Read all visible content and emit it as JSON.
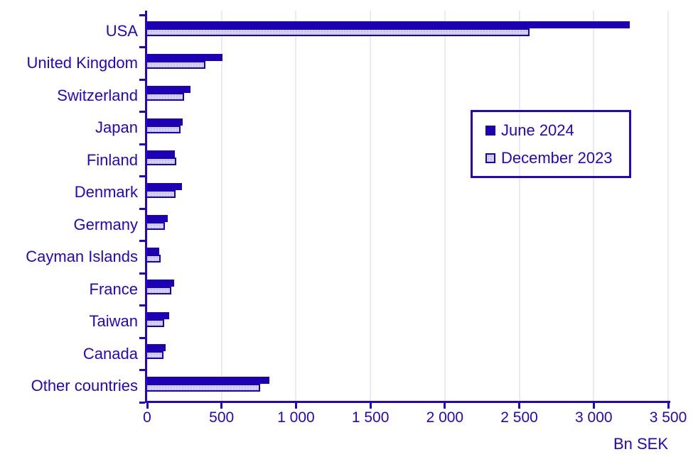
{
  "chart_data": {
    "type": "bar",
    "orientation": "horizontal",
    "title": "",
    "categories": [
      "USA",
      "United Kingdom",
      "Switzerland",
      "Japan",
      "Finland",
      "Denmark",
      "Germany",
      "Cayman Islands",
      "France",
      "Taiwan",
      "Canada",
      "Other countries"
    ],
    "series": [
      {
        "name": "June 2024",
        "color": "#1d00b4",
        "style": "solid",
        "values": [
          3240,
          505,
          290,
          240,
          185,
          235,
          140,
          80,
          180,
          150,
          125,
          820
        ]
      },
      {
        "name": "December 2023",
        "color": "#d3d3f0",
        "border_color": "#1d00b4",
        "style": "dotted-fill",
        "values": [
          2570,
          390,
          250,
          225,
          195,
          190,
          120,
          90,
          160,
          115,
          110,
          760
        ]
      }
    ],
    "xlabel": "Bn SEK",
    "xlim": [
      0,
      3500
    ],
    "x_ticks": [
      0,
      500,
      1000,
      1500,
      2000,
      2500,
      3000,
      3500
    ],
    "x_tick_labels": [
      "0",
      "500",
      "1 000",
      "1 500",
      "2 000",
      "2 500",
      "3 000",
      "3 500"
    ],
    "grid": "vertical gridlines every 500",
    "legend_position": "inside top-right"
  },
  "colors": {
    "axis": "#2405c8",
    "text": "#2405c8",
    "gridline": "#eaeaf8",
    "june_bar": "#1d00b4",
    "december_fill": "#d3d3f0",
    "background": "#ffffff"
  }
}
